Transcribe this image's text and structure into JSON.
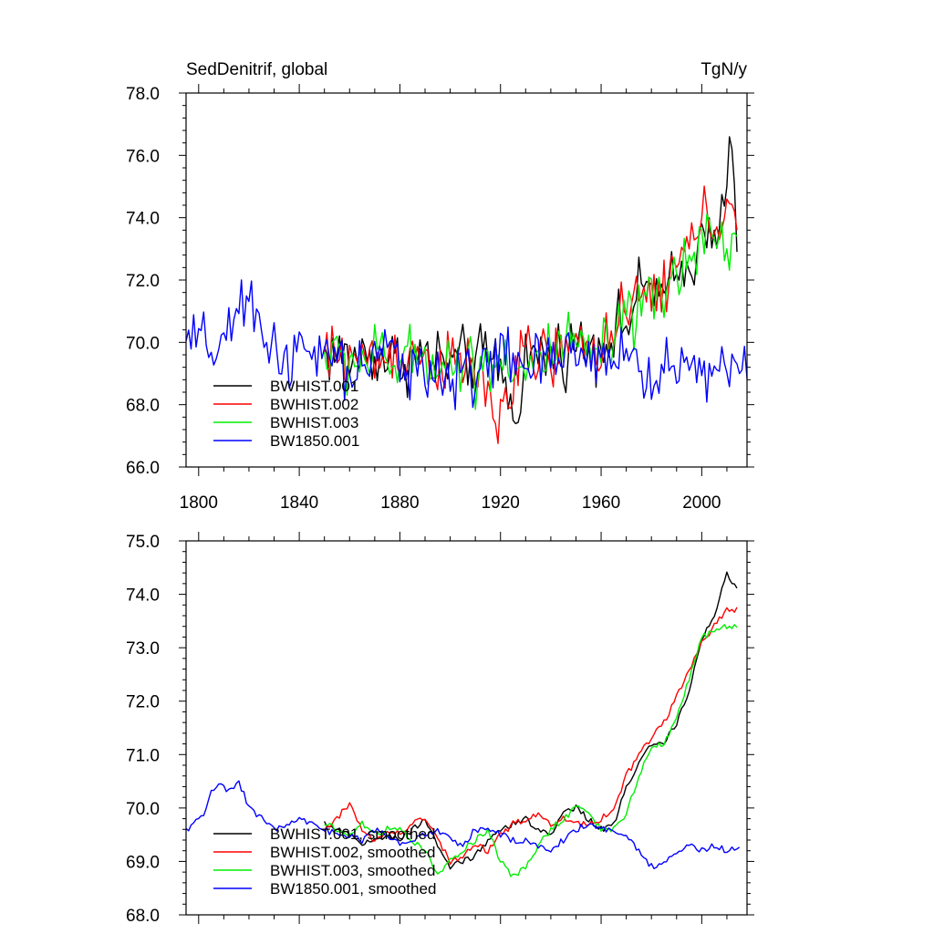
{
  "chart_data": [
    {
      "type": "line",
      "title_left": "SedDenitrif, global",
      "title_right": "TgN/y",
      "xlim": [
        1795,
        2018
      ],
      "ylim": [
        66,
        78
      ],
      "xticks": [
        1800,
        1840,
        1880,
        1920,
        1960,
        2000
      ],
      "xtick_labels": [
        "1800",
        "1840",
        "1880",
        "1920",
        "1960",
        "2000"
      ],
      "yticks": [
        66,
        68,
        70,
        72,
        74,
        76,
        78
      ],
      "ytick_labels": [
        "66.0",
        "68.0",
        "70.0",
        "72.0",
        "74.0",
        "76.0",
        "78.0"
      ],
      "legend_position": "bottom-left",
      "series": [
        {
          "name": "BWHIST.001",
          "color": "#000000",
          "x_start": 1850,
          "x_end": 2014,
          "x": [
            1850,
            1860,
            1870,
            1880,
            1890,
            1900,
            1910,
            1920,
            1925,
            1930,
            1940,
            1950,
            1960,
            1970,
            1975,
            1980,
            1985,
            1990,
            1995,
            2000,
            2005,
            2010,
            2012,
            2014
          ],
          "y": [
            69.7,
            69.5,
            69.6,
            69.4,
            69.6,
            69.3,
            69.5,
            69.4,
            67.5,
            69.5,
            69.6,
            69.9,
            70.0,
            70.6,
            71.5,
            72.0,
            71.3,
            72.2,
            72.3,
            73.8,
            73.6,
            75.0,
            76.2,
            72.9
          ]
        },
        {
          "name": "BWHIST.002",
          "color": "#ff0000",
          "x_start": 1850,
          "x_end": 2014,
          "x": [
            1850,
            1860,
            1870,
            1880,
            1890,
            1900,
            1910,
            1918,
            1930,
            1940,
            1950,
            1960,
            1970,
            1975,
            1980,
            1985,
            1990,
            1995,
            2000,
            2005,
            2010,
            2014
          ],
          "y": [
            69.5,
            69.6,
            69.4,
            69.7,
            69.5,
            69.2,
            69.3,
            67.4,
            69.6,
            69.5,
            69.8,
            70.0,
            70.7,
            71.3,
            71.7,
            71.8,
            72.4,
            73.0,
            74.0,
            73.5,
            74.6,
            73.6
          ]
        },
        {
          "name": "BWHIST.003",
          "color": "#00ee00",
          "x_start": 1850,
          "x_end": 2014,
          "x": [
            1850,
            1860,
            1870,
            1880,
            1890,
            1900,
            1910,
            1920,
            1930,
            1940,
            1950,
            1960,
            1970,
            1975,
            1980,
            1985,
            1990,
            1995,
            2000,
            2005,
            2010,
            2014
          ],
          "y": [
            69.6,
            69.4,
            69.5,
            69.3,
            69.6,
            69.4,
            69.2,
            69.6,
            69.0,
            69.7,
            69.8,
            69.6,
            70.5,
            70.9,
            71.2,
            71.5,
            72.2,
            72.8,
            73.6,
            73.3,
            73.0,
            73.4
          ]
        },
        {
          "name": "BW1850.001",
          "color": "#0000ff",
          "x_start": 1795,
          "x_end": 2018,
          "x": [
            1795,
            1805,
            1815,
            1820,
            1830,
            1840,
            1850,
            1860,
            1870,
            1880,
            1890,
            1900,
            1910,
            1920,
            1930,
            1940,
            1950,
            1960,
            1970,
            1980,
            1990,
            2000,
            2010,
            2018
          ],
          "y": [
            70.0,
            69.8,
            70.5,
            71.2,
            69.8,
            69.5,
            69.6,
            69.0,
            69.4,
            69.6,
            69.2,
            68.6,
            69.3,
            69.5,
            69.3,
            69.2,
            69.7,
            69.7,
            69.5,
            68.8,
            69.3,
            69.1,
            69.3,
            69.1
          ]
        }
      ]
    },
    {
      "type": "line",
      "xlim": [
        1795,
        2018
      ],
      "ylim": [
        68,
        75
      ],
      "xticks": [
        1800,
        1840,
        1880,
        1920,
        1960,
        2000
      ],
      "yticks": [
        68,
        69,
        70,
        71,
        72,
        73,
        74,
        75
      ],
      "ytick_labels": [
        "68.0",
        "69.0",
        "70.0",
        "71.0",
        "72.0",
        "73.0",
        "74.0",
        "75.0"
      ],
      "legend_position": "bottom-left",
      "series": [
        {
          "name": "BWHIST.001, smoothed",
          "color": "#000000",
          "x": [
            1850,
            1855,
            1860,
            1865,
            1870,
            1875,
            1880,
            1885,
            1890,
            1895,
            1900,
            1905,
            1910,
            1915,
            1920,
            1925,
            1930,
            1935,
            1940,
            1945,
            1950,
            1955,
            1960,
            1965,
            1970,
            1975,
            1980,
            1985,
            1990,
            1995,
            2000,
            2005,
            2010,
            2014
          ],
          "y": [
            69.7,
            69.6,
            69.5,
            69.3,
            69.4,
            69.5,
            69.4,
            69.6,
            69.8,
            69.3,
            68.9,
            69.0,
            69.1,
            69.4,
            69.6,
            69.7,
            69.8,
            69.6,
            69.5,
            69.9,
            70.0,
            69.8,
            69.6,
            69.7,
            70.4,
            70.8,
            71.2,
            71.2,
            71.6,
            72.2,
            73.2,
            73.6,
            74.4,
            74.1
          ]
        },
        {
          "name": "BWHIST.002, smoothed",
          "color": "#ff0000",
          "x": [
            1850,
            1855,
            1860,
            1865,
            1870,
            1875,
            1880,
            1885,
            1890,
            1895,
            1900,
            1905,
            1910,
            1915,
            1920,
            1925,
            1930,
            1935,
            1940,
            1945,
            1950,
            1955,
            1960,
            1965,
            1970,
            1975,
            1980,
            1985,
            1990,
            1995,
            2000,
            2005,
            2010,
            2014
          ],
          "y": [
            69.6,
            69.8,
            70.1,
            69.6,
            69.4,
            69.6,
            69.5,
            69.7,
            69.8,
            69.4,
            69.0,
            69.1,
            69.3,
            69.2,
            69.5,
            69.7,
            69.8,
            69.9,
            69.7,
            69.8,
            69.7,
            69.7,
            69.8,
            70.0,
            70.6,
            71.0,
            71.3,
            71.6,
            72.1,
            72.6,
            73.1,
            73.4,
            73.7,
            73.7
          ]
        },
        {
          "name": "BWHIST.003, smoothed",
          "color": "#00ee00",
          "x": [
            1850,
            1855,
            1860,
            1865,
            1870,
            1875,
            1880,
            1885,
            1890,
            1895,
            1900,
            1905,
            1910,
            1915,
            1920,
            1925,
            1930,
            1935,
            1940,
            1945,
            1950,
            1955,
            1960,
            1965,
            1970,
            1975,
            1980,
            1985,
            1990,
            1995,
            2000,
            2005,
            2010,
            2014
          ],
          "y": [
            69.7,
            69.6,
            69.5,
            69.7,
            69.5,
            69.6,
            69.6,
            69.4,
            69.2,
            68.8,
            69.0,
            69.2,
            69.4,
            69.6,
            69.0,
            68.7,
            68.9,
            69.3,
            69.6,
            69.8,
            70.0,
            69.9,
            69.6,
            69.6,
            69.9,
            70.6,
            71.1,
            71.2,
            71.7,
            72.4,
            73.2,
            73.3,
            73.4,
            73.4
          ]
        },
        {
          "name": "BW1850.001, smoothed",
          "color": "#0000ff",
          "x": [
            1795,
            1798,
            1802,
            1805,
            1808,
            1812,
            1816,
            1820,
            1825,
            1830,
            1835,
            1840,
            1845,
            1850,
            1855,
            1860,
            1865,
            1870,
            1875,
            1880,
            1885,
            1890,
            1895,
            1900,
            1905,
            1910,
            1915,
            1920,
            1925,
            1930,
            1935,
            1940,
            1945,
            1950,
            1955,
            1960,
            1965,
            1970,
            1975,
            1980,
            1985,
            1990,
            1995,
            2000,
            2005,
            2010,
            2015
          ],
          "y": [
            69.6,
            69.7,
            69.9,
            70.3,
            70.5,
            70.3,
            70.5,
            70.0,
            69.8,
            69.6,
            69.7,
            69.8,
            69.7,
            69.6,
            69.5,
            69.5,
            69.4,
            69.6,
            69.5,
            69.3,
            69.4,
            69.5,
            69.6,
            69.4,
            69.3,
            69.6,
            69.6,
            69.5,
            69.4,
            69.4,
            69.3,
            69.2,
            69.4,
            69.6,
            69.7,
            69.6,
            69.6,
            69.5,
            69.2,
            68.9,
            69.0,
            69.2,
            69.3,
            69.2,
            69.3,
            69.2,
            69.3
          ]
        }
      ]
    }
  ]
}
